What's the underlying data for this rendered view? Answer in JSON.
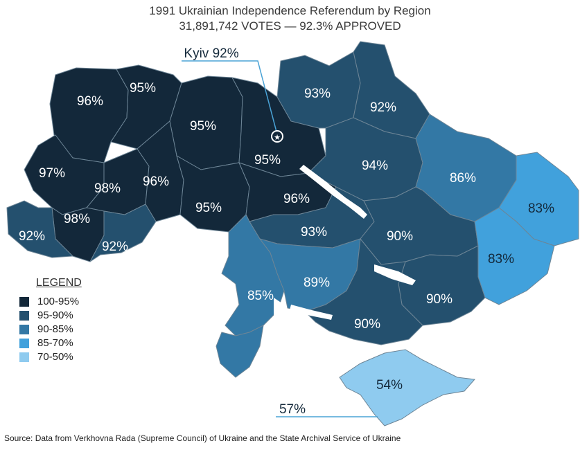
{
  "title": "1991 Ukrainian Independence Referendum by Region",
  "subtitle": "31,891,742 VOTES — 92.3% APPROVED",
  "source": "Source: Data from Verkhovna Rada (Supreme Council) of Ukraine and the State Archival Service of Ukraine",
  "legend": {
    "title": "LEGEND",
    "items": [
      {
        "label": "100-95%",
        "color": "#13283a"
      },
      {
        "label": "95-90%",
        "color": "#24506e"
      },
      {
        "label": "90-85%",
        "color": "#3378a5"
      },
      {
        "label": "85-70%",
        "color": "#41a1dc"
      },
      {
        "label": "70-50%",
        "color": "#8fcbef"
      }
    ]
  },
  "colors": {
    "water": "#ffffff",
    "callout_line": "#4aa3d6",
    "border": "#6d8596"
  },
  "regions": [
    {
      "label": "96%",
      "value": 96
    },
    {
      "label": "95%",
      "value": 95
    },
    {
      "label": "95%",
      "value": 95
    },
    {
      "label": "93%",
      "value": 93
    },
    {
      "label": "92%",
      "value": 92
    },
    {
      "label": "97%",
      "value": 97
    },
    {
      "label": "98%",
      "value": 98
    },
    {
      "label": "96%",
      "value": 96
    },
    {
      "label": "95%",
      "value": 95
    },
    {
      "label": "94%",
      "value": 94
    },
    {
      "label": "86%",
      "value": 86
    },
    {
      "label": "83%",
      "value": 83
    },
    {
      "label": "92%",
      "value": 92
    },
    {
      "label": "98%",
      "value": 98
    },
    {
      "label": "95%",
      "value": 95
    },
    {
      "label": "96%",
      "value": 96
    },
    {
      "label": "92%",
      "value": 92
    },
    {
      "label": "93%",
      "value": 93
    },
    {
      "label": "90%",
      "value": 90
    },
    {
      "label": "83%",
      "value": 83
    },
    {
      "label": "85%",
      "value": 85
    },
    {
      "label": "89%",
      "value": 89
    },
    {
      "label": "90%",
      "value": 90
    },
    {
      "label": "90%",
      "value": 90
    },
    {
      "label": "54%",
      "value": 54
    }
  ],
  "callouts": {
    "kyiv": {
      "label": "Kyiv 92%",
      "value": 92
    },
    "sevastopol": {
      "label": "57%",
      "value": 57
    }
  }
}
